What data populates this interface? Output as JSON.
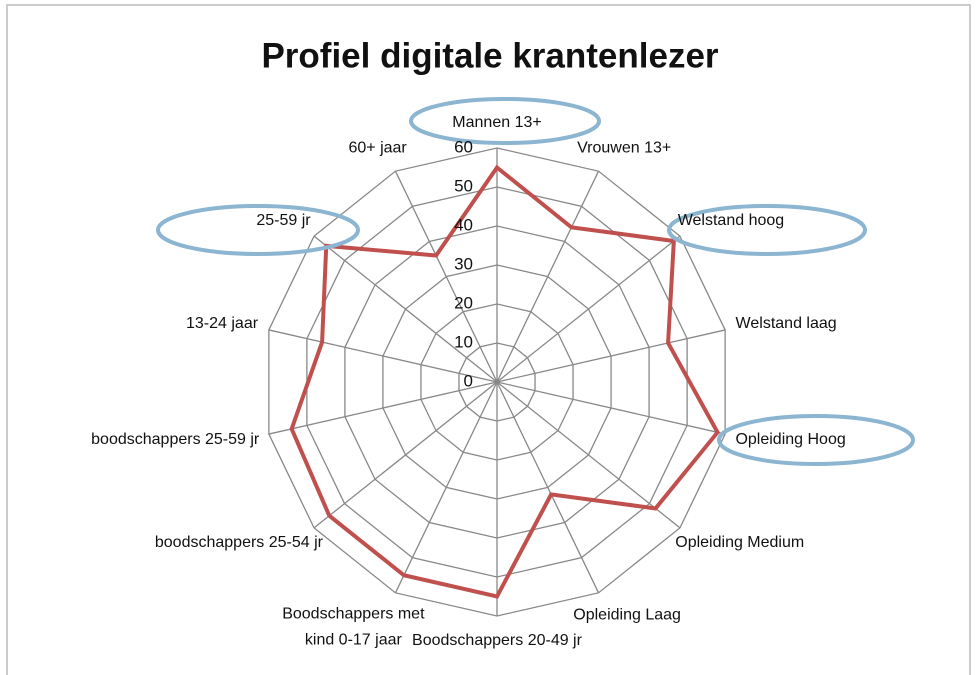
{
  "chart_data": {
    "type": "radar",
    "title": "Profiel digitale krantenlezer",
    "categories": [
      "Mannen 13+",
      "Vrouwen 13+",
      "Welstand hoog",
      "Welstand laag",
      "Opleiding Hoog",
      "Opleiding Medium",
      "Opleiding Laag",
      "Boodschappers 20-49 jr",
      "Boodschappers met kind 0-17 jaar",
      "boodschappers 25-54 jr",
      "boodschappers 25-59 jr",
      "13-24 jaar",
      "25-59 jr",
      "60+ jaar"
    ],
    "series": [
      {
        "name": "Profiel",
        "color": "#c0504d",
        "values": [
          55,
          44,
          58,
          45,
          58,
          52,
          32,
          55,
          55,
          55,
          54,
          46,
          56,
          36
        ]
      }
    ],
    "ylim": [
      0,
      60
    ],
    "yticks": [
      0,
      10,
      20,
      30,
      40,
      50,
      60
    ],
    "grid": true
  }
}
